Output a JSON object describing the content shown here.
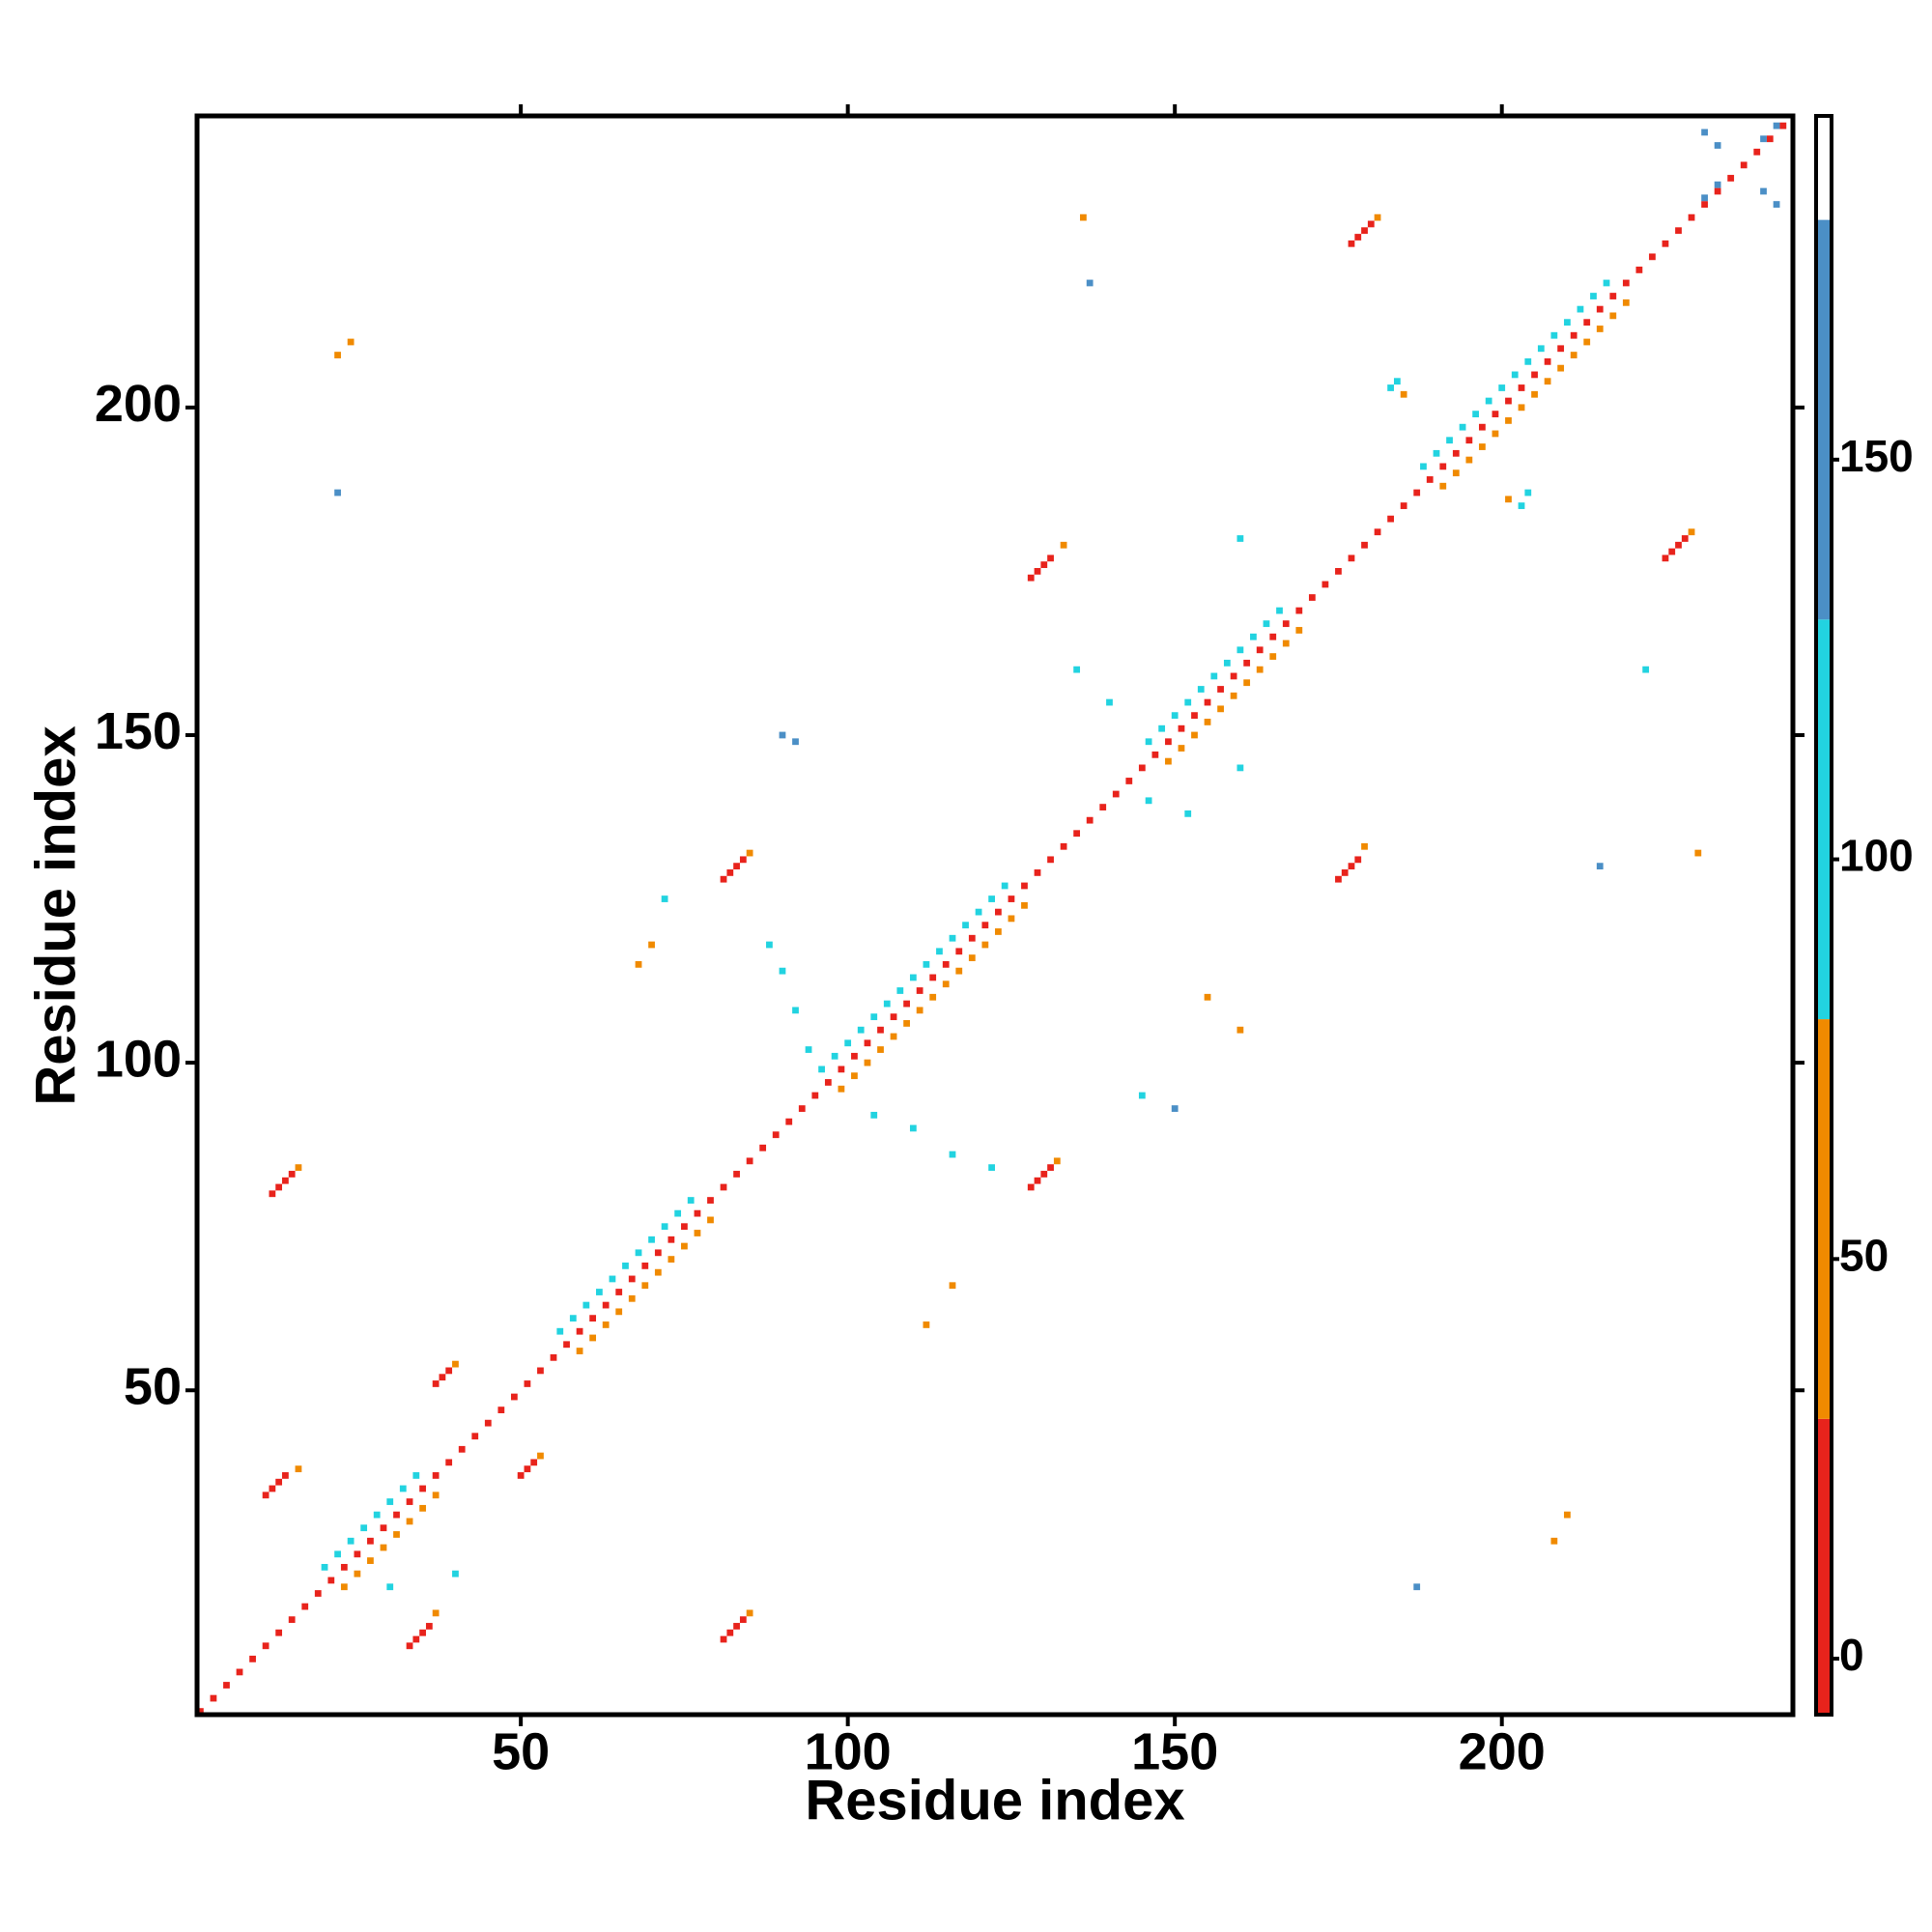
{
  "chart_data": {
    "type": "heatmap",
    "x_label": "Residue index",
    "y_label": "Residue index",
    "xlim": [
      0.5,
      244.5
    ],
    "ylim": [
      0.5,
      244.5
    ],
    "xticks": [
      50,
      100,
      150,
      200
    ],
    "yticks": [
      50,
      100,
      150,
      200
    ],
    "zlim": [
      -7,
      193
    ],
    "zticks": [
      0,
      50,
      100,
      150
    ],
    "color_bins": [
      {
        "min": -7,
        "max": 30,
        "color": "#e8231c"
      },
      {
        "min": 30,
        "max": 80,
        "color": "#f08a00"
      },
      {
        "min": 80,
        "max": 130,
        "color": "#22d3e0"
      },
      {
        "min": 130,
        "max": 180,
        "color": "#4b8fc6"
      },
      {
        "min": 180,
        "max": 193,
        "color": "#ffffff"
      }
    ],
    "cells": [
      [
        1,
        1,
        20
      ],
      [
        3,
        3,
        20
      ],
      [
        5,
        5,
        20
      ],
      [
        7,
        7,
        20
      ],
      [
        9,
        9,
        20
      ],
      [
        11,
        11,
        20
      ],
      [
        13,
        13,
        20
      ],
      [
        15,
        15,
        20
      ],
      [
        17,
        17,
        20
      ],
      [
        19,
        19,
        20
      ],
      [
        21,
        21,
        20
      ],
      [
        23,
        23,
        20
      ],
      [
        25,
        25,
        20
      ],
      [
        27,
        27,
        20
      ],
      [
        29,
        29,
        20
      ],
      [
        31,
        31,
        20
      ],
      [
        33,
        33,
        20
      ],
      [
        35,
        35,
        20
      ],
      [
        37,
        37,
        20
      ],
      [
        39,
        39,
        20
      ],
      [
        41,
        41,
        20
      ],
      [
        43,
        43,
        20
      ],
      [
        45,
        45,
        20
      ],
      [
        47,
        47,
        20
      ],
      [
        49,
        49,
        20
      ],
      [
        51,
        51,
        20
      ],
      [
        53,
        53,
        20
      ],
      [
        55,
        55,
        20
      ],
      [
        57,
        57,
        20
      ],
      [
        59,
        59,
        20
      ],
      [
        61,
        61,
        20
      ],
      [
        63,
        63,
        20
      ],
      [
        65,
        65,
        20
      ],
      [
        67,
        67,
        20
      ],
      [
        69,
        69,
        20
      ],
      [
        71,
        71,
        20
      ],
      [
        73,
        73,
        20
      ],
      [
        75,
        75,
        20
      ],
      [
        77,
        77,
        20
      ],
      [
        79,
        79,
        20
      ],
      [
        81,
        81,
        20
      ],
      [
        83,
        83,
        20
      ],
      [
        85,
        85,
        20
      ],
      [
        87,
        87,
        20
      ],
      [
        89,
        89,
        20
      ],
      [
        91,
        91,
        20
      ],
      [
        93,
        93,
        20
      ],
      [
        95,
        95,
        20
      ],
      [
        97,
        97,
        20
      ],
      [
        99,
        99,
        20
      ],
      [
        101,
        101,
        20
      ],
      [
        103,
        103,
        20
      ],
      [
        105,
        105,
        20
      ],
      [
        107,
        107,
        20
      ],
      [
        109,
        109,
        20
      ],
      [
        111,
        111,
        20
      ],
      [
        113,
        113,
        20
      ],
      [
        115,
        115,
        20
      ],
      [
        117,
        117,
        20
      ],
      [
        119,
        119,
        20
      ],
      [
        121,
        121,
        20
      ],
      [
        123,
        123,
        20
      ],
      [
        125,
        125,
        20
      ],
      [
        127,
        127,
        20
      ],
      [
        129,
        129,
        20
      ],
      [
        131,
        131,
        20
      ],
      [
        133,
        133,
        20
      ],
      [
        135,
        135,
        20
      ],
      [
        137,
        137,
        20
      ],
      [
        139,
        139,
        20
      ],
      [
        141,
        141,
        20
      ],
      [
        143,
        143,
        20
      ],
      [
        145,
        145,
        20
      ],
      [
        147,
        147,
        20
      ],
      [
        149,
        149,
        20
      ],
      [
        151,
        151,
        20
      ],
      [
        153,
        153,
        20
      ],
      [
        155,
        155,
        20
      ],
      [
        157,
        157,
        20
      ],
      [
        159,
        159,
        20
      ],
      [
        161,
        161,
        20
      ],
      [
        163,
        163,
        20
      ],
      [
        165,
        165,
        20
      ],
      [
        167,
        167,
        20
      ],
      [
        169,
        169,
        20
      ],
      [
        171,
        171,
        20
      ],
      [
        173,
        173,
        20
      ],
      [
        175,
        175,
        20
      ],
      [
        177,
        177,
        20
      ],
      [
        179,
        179,
        20
      ],
      [
        181,
        181,
        20
      ],
      [
        183,
        183,
        20
      ],
      [
        185,
        185,
        20
      ],
      [
        187,
        187,
        20
      ],
      [
        189,
        189,
        20
      ],
      [
        191,
        191,
        20
      ],
      [
        193,
        193,
        20
      ],
      [
        195,
        195,
        20
      ],
      [
        197,
        197,
        20
      ],
      [
        199,
        199,
        20
      ],
      [
        201,
        201,
        20
      ],
      [
        203,
        203,
        20
      ],
      [
        205,
        205,
        20
      ],
      [
        207,
        207,
        20
      ],
      [
        209,
        209,
        20
      ],
      [
        211,
        211,
        20
      ],
      [
        213,
        213,
        20
      ],
      [
        215,
        215,
        20
      ],
      [
        217,
        217,
        20
      ],
      [
        219,
        219,
        20
      ],
      [
        221,
        221,
        20
      ],
      [
        223,
        223,
        20
      ],
      [
        225,
        225,
        20
      ],
      [
        227,
        227,
        20
      ],
      [
        229,
        229,
        20
      ],
      [
        231,
        231,
        20
      ],
      [
        233,
        233,
        20
      ],
      [
        235,
        235,
        20
      ],
      [
        237,
        237,
        20
      ],
      [
        239,
        239,
        20
      ],
      [
        241,
        241,
        20
      ],
      [
        243,
        243,
        20
      ],
      [
        20,
        23,
        100
      ],
      [
        23,
        20,
        60
      ],
      [
        22,
        25,
        100
      ],
      [
        25,
        22,
        60
      ],
      [
        24,
        27,
        100
      ],
      [
        27,
        24,
        60
      ],
      [
        26,
        29,
        100
      ],
      [
        29,
        26,
        60
      ],
      [
        28,
        31,
        100
      ],
      [
        31,
        28,
        60
      ],
      [
        30,
        33,
        100
      ],
      [
        33,
        30,
        60
      ],
      [
        32,
        35,
        100
      ],
      [
        35,
        32,
        60
      ],
      [
        34,
        37,
        100
      ],
      [
        37,
        34,
        60
      ],
      [
        56,
        59,
        100
      ],
      [
        59,
        56,
        60
      ],
      [
        58,
        61,
        100
      ],
      [
        61,
        58,
        60
      ],
      [
        60,
        63,
        100
      ],
      [
        63,
        60,
        60
      ],
      [
        62,
        65,
        100
      ],
      [
        65,
        62,
        60
      ],
      [
        64,
        67,
        100
      ],
      [
        67,
        64,
        60
      ],
      [
        66,
        69,
        100
      ],
      [
        69,
        66,
        60
      ],
      [
        68,
        71,
        100
      ],
      [
        71,
        68,
        60
      ],
      [
        70,
        73,
        100
      ],
      [
        73,
        70,
        60
      ],
      [
        72,
        75,
        100
      ],
      [
        75,
        72,
        60
      ],
      [
        74,
        77,
        100
      ],
      [
        77,
        74,
        60
      ],
      [
        76,
        79,
        100
      ],
      [
        79,
        76,
        60
      ],
      [
        96,
        99,
        100
      ],
      [
        99,
        96,
        60
      ],
      [
        98,
        101,
        100
      ],
      [
        101,
        98,
        60
      ],
      [
        100,
        103,
        100
      ],
      [
        103,
        100,
        60
      ],
      [
        102,
        105,
        100
      ],
      [
        105,
        102,
        60
      ],
      [
        104,
        107,
        100
      ],
      [
        107,
        104,
        60
      ],
      [
        106,
        109,
        100
      ],
      [
        109,
        106,
        60
      ],
      [
        108,
        111,
        100
      ],
      [
        111,
        108,
        60
      ],
      [
        110,
        113,
        100
      ],
      [
        113,
        110,
        60
      ],
      [
        112,
        115,
        100
      ],
      [
        115,
        112,
        60
      ],
      [
        114,
        117,
        100
      ],
      [
        117,
        114,
        60
      ],
      [
        116,
        119,
        100
      ],
      [
        119,
        116,
        60
      ],
      [
        118,
        121,
        100
      ],
      [
        121,
        118,
        60
      ],
      [
        120,
        123,
        100
      ],
      [
        123,
        120,
        60
      ],
      [
        122,
        125,
        100
      ],
      [
        125,
        122,
        60
      ],
      [
        124,
        127,
        100
      ],
      [
        127,
        124,
        60
      ],
      [
        146,
        149,
        100
      ],
      [
        149,
        146,
        60
      ],
      [
        148,
        151,
        100
      ],
      [
        151,
        148,
        60
      ],
      [
        150,
        153,
        100
      ],
      [
        153,
        150,
        60
      ],
      [
        152,
        155,
        100
      ],
      [
        155,
        152,
        60
      ],
      [
        154,
        157,
        100
      ],
      [
        157,
        154,
        60
      ],
      [
        156,
        159,
        100
      ],
      [
        159,
        156,
        60
      ],
      [
        158,
        161,
        100
      ],
      [
        161,
        158,
        60
      ],
      [
        160,
        163,
        100
      ],
      [
        163,
        160,
        60
      ],
      [
        162,
        165,
        100
      ],
      [
        165,
        162,
        60
      ],
      [
        164,
        167,
        100
      ],
      [
        167,
        164,
        60
      ],
      [
        166,
        169,
        100
      ],
      [
        169,
        166,
        60
      ],
      [
        188,
        191,
        100
      ],
      [
        191,
        188,
        60
      ],
      [
        190,
        193,
        100
      ],
      [
        193,
        190,
        60
      ],
      [
        192,
        195,
        100
      ],
      [
        195,
        192,
        60
      ],
      [
        194,
        197,
        100
      ],
      [
        197,
        194,
        60
      ],
      [
        196,
        199,
        100
      ],
      [
        199,
        196,
        60
      ],
      [
        198,
        201,
        100
      ],
      [
        201,
        198,
        60
      ],
      [
        200,
        203,
        100
      ],
      [
        203,
        200,
        60
      ],
      [
        202,
        205,
        100
      ],
      [
        205,
        202,
        60
      ],
      [
        204,
        207,
        100
      ],
      [
        207,
        204,
        60
      ],
      [
        206,
        209,
        100
      ],
      [
        209,
        206,
        60
      ],
      [
        208,
        211,
        100
      ],
      [
        211,
        208,
        60
      ],
      [
        210,
        213,
        100
      ],
      [
        213,
        210,
        60
      ],
      [
        212,
        215,
        100
      ],
      [
        215,
        212,
        60
      ],
      [
        214,
        217,
        100
      ],
      [
        217,
        214,
        60
      ],
      [
        216,
        219,
        100
      ],
      [
        219,
        216,
        60
      ],
      [
        12,
        80,
        10
      ],
      [
        13,
        81,
        10
      ],
      [
        14,
        82,
        10
      ],
      [
        15,
        83,
        10
      ],
      [
        16,
        84,
        50
      ],
      [
        81,
        12,
        10
      ],
      [
        82,
        13,
        10
      ],
      [
        83,
        14,
        10
      ],
      [
        84,
        15,
        10
      ],
      [
        85,
        16,
        50
      ],
      [
        33,
        11,
        10
      ],
      [
        34,
        12,
        10
      ],
      [
        35,
        13,
        10
      ],
      [
        36,
        14,
        10
      ],
      [
        37,
        16,
        50
      ],
      [
        11,
        34,
        10
      ],
      [
        12,
        35,
        10
      ],
      [
        13,
        36,
        10
      ],
      [
        14,
        37,
        10
      ],
      [
        16,
        38,
        50
      ],
      [
        37,
        51,
        10
      ],
      [
        38,
        52,
        10
      ],
      [
        39,
        53,
        10
      ],
      [
        40,
        54,
        50
      ],
      [
        50,
        37,
        10
      ],
      [
        51,
        38,
        10
      ],
      [
        52,
        39,
        10
      ],
      [
        53,
        40,
        50
      ],
      [
        128,
        81,
        10
      ],
      [
        129,
        82,
        10
      ],
      [
        130,
        83,
        10
      ],
      [
        131,
        84,
        10
      ],
      [
        132,
        85,
        50
      ],
      [
        81,
        128,
        10
      ],
      [
        82,
        129,
        10
      ],
      [
        83,
        130,
        10
      ],
      [
        84,
        131,
        10
      ],
      [
        85,
        132,
        50
      ],
      [
        175,
        128,
        10
      ],
      [
        176,
        129,
        10
      ],
      [
        177,
        130,
        10
      ],
      [
        178,
        131,
        10
      ],
      [
        179,
        133,
        50
      ],
      [
        128,
        174,
        10
      ],
      [
        129,
        175,
        10
      ],
      [
        130,
        176,
        10
      ],
      [
        131,
        177,
        10
      ],
      [
        133,
        179,
        50
      ],
      [
        177,
        225,
        10
      ],
      [
        178,
        226,
        10
      ],
      [
        179,
        227,
        10
      ],
      [
        180,
        228,
        10
      ],
      [
        181,
        229,
        50
      ],
      [
        225,
        177,
        10
      ],
      [
        226,
        178,
        10
      ],
      [
        227,
        179,
        10
      ],
      [
        228,
        180,
        10
      ],
      [
        229,
        181,
        50
      ],
      [
        183,
        203,
        100
      ],
      [
        185,
        202,
        60
      ],
      [
        184,
        204,
        100
      ],
      [
        201,
        186,
        60
      ],
      [
        203,
        185,
        100
      ],
      [
        204,
        187,
        100
      ],
      [
        231,
        242,
        165
      ],
      [
        233,
        240,
        165
      ],
      [
        240,
        233,
        165
      ],
      [
        242,
        231,
        165
      ],
      [
        231,
        232,
        165
      ],
      [
        233,
        234,
        165
      ],
      [
        240,
        241,
        165
      ],
      [
        242,
        243,
        165
      ],
      [
        88,
        118,
        100
      ],
      [
        90,
        114,
        100
      ],
      [
        92,
        108,
        100
      ],
      [
        94,
        102,
        100
      ],
      [
        104,
        92,
        100
      ],
      [
        110,
        90,
        100
      ],
      [
        116,
        86,
        100
      ],
      [
        122,
        84,
        100
      ],
      [
        135,
        160,
        100
      ],
      [
        140,
        155,
        100
      ],
      [
        146,
        140,
        100
      ],
      [
        152,
        138,
        100
      ],
      [
        160,
        145,
        100
      ],
      [
        30,
        20,
        100
      ],
      [
        40,
        22,
        100
      ],
      [
        22,
        208,
        50
      ],
      [
        24,
        210,
        50
      ],
      [
        22,
        187,
        160
      ],
      [
        90,
        150,
        160
      ],
      [
        92,
        149,
        165
      ],
      [
        137,
        219,
        160
      ],
      [
        136,
        229,
        50
      ],
      [
        210,
        31,
        50
      ],
      [
        208,
        27,
        50
      ],
      [
        187,
        20,
        160
      ],
      [
        150,
        93,
        160
      ],
      [
        215,
        130,
        160
      ],
      [
        230,
        132,
        50
      ],
      [
        112,
        60,
        50
      ],
      [
        116,
        66,
        50
      ],
      [
        145,
        95,
        100
      ],
      [
        160,
        180,
        100
      ],
      [
        222,
        160,
        100
      ],
      [
        160,
        105,
        50
      ],
      [
        155,
        110,
        50
      ],
      [
        68,
        115,
        50
      ],
      [
        70,
        118,
        50
      ],
      [
        72,
        125,
        110
      ]
    ]
  }
}
